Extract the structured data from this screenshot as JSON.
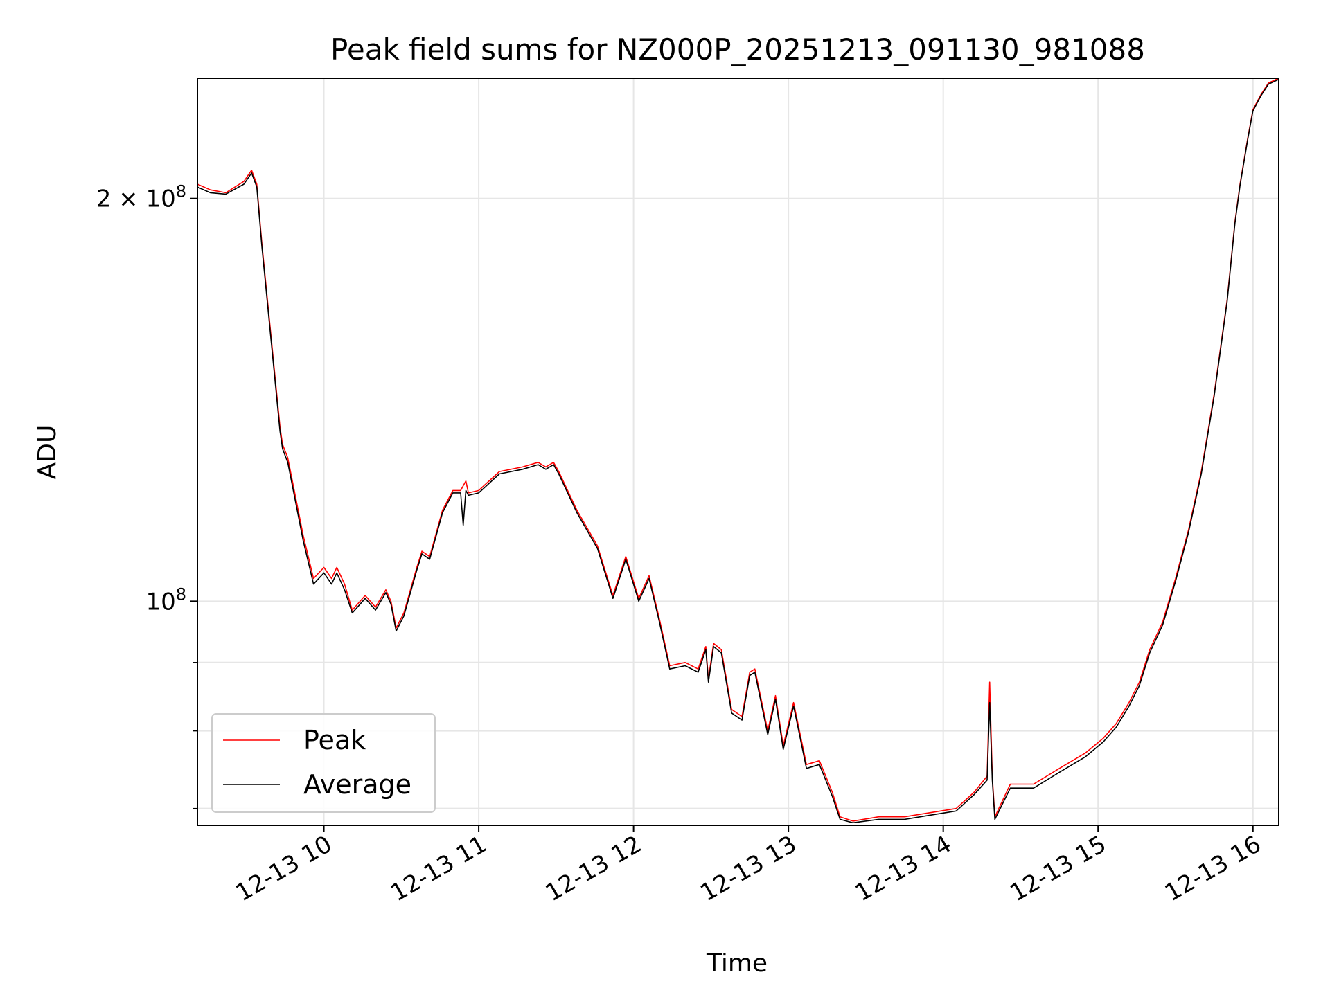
{
  "chart_data": {
    "type": "line",
    "title": "Peak field sums for NZ000P_20251213_091130_981088",
    "xlabel": "Time",
    "ylabel": "ADU",
    "y_scale": "log",
    "xlim": [
      "2025-12-13 09:11",
      "2025-12-13 16:10"
    ],
    "ylim": [
      68000000,
      246000000
    ],
    "x_ticks": [
      {
        "value": "2025-12-13 10:00",
        "label": "12-13 10"
      },
      {
        "value": "2025-12-13 11:00",
        "label": "12-13 11"
      },
      {
        "value": "2025-12-13 12:00",
        "label": "12-13 12"
      },
      {
        "value": "2025-12-13 13:00",
        "label": "12-13 13"
      },
      {
        "value": "2025-12-13 14:00",
        "label": "12-13 14"
      },
      {
        "value": "2025-12-13 15:00",
        "label": "12-13 15"
      },
      {
        "value": "2025-12-13 16:00",
        "label": "12-13 16"
      }
    ],
    "y_major_ticks": [
      {
        "value": 100000000,
        "base": "10",
        "exp": "8"
      },
      {
        "value": 200000000,
        "base": "2 × 10",
        "exp": "8"
      }
    ],
    "y_minor_ticks": [
      70000000,
      80000000,
      90000000
    ],
    "grid": true,
    "legend_position": "lower-left",
    "colors": {
      "Peak": "#ff0000",
      "Average": "#000000"
    },
    "series": [
      {
        "name": "Peak",
        "x": [
          "2025-12-13 09:11",
          "2025-12-13 09:16",
          "2025-12-13 09:22",
          "2025-12-13 09:29",
          "2025-12-13 09:32",
          "2025-12-13 09:34",
          "2025-12-13 09:36",
          "2025-12-13 09:43",
          "2025-12-13 09:44",
          "2025-12-13 09:46",
          "2025-12-13 09:52",
          "2025-12-13 09:56",
          "2025-12-13 10:00",
          "2025-12-13 10:03",
          "2025-12-13 10:05",
          "2025-12-13 10:08",
          "2025-12-13 10:11",
          "2025-12-13 10:16",
          "2025-12-13 10:20",
          "2025-12-13 10:24",
          "2025-12-13 10:26",
          "2025-12-13 10:28",
          "2025-12-13 10:31",
          "2025-12-13 10:36",
          "2025-12-13 10:38",
          "2025-12-13 10:41",
          "2025-12-13 10:46",
          "2025-12-13 10:50",
          "2025-12-13 10:53",
          "2025-12-13 10:55",
          "2025-12-13 10:56",
          "2025-12-13 11:00",
          "2025-12-13 11:08",
          "2025-12-13 11:17",
          "2025-12-13 11:23",
          "2025-12-13 11:26",
          "2025-12-13 11:29",
          "2025-12-13 11:31",
          "2025-12-13 11:38",
          "2025-12-13 11:46",
          "2025-12-13 11:52",
          "2025-12-13 11:57",
          "2025-12-13 12:02",
          "2025-12-13 12:06",
          "2025-12-13 12:10",
          "2025-12-13 12:14",
          "2025-12-13 12:20",
          "2025-12-13 12:25",
          "2025-12-13 12:28",
          "2025-12-13 12:29",
          "2025-12-13 12:31",
          "2025-12-13 12:34",
          "2025-12-13 12:38",
          "2025-12-13 12:42",
          "2025-12-13 12:45",
          "2025-12-13 12:47",
          "2025-12-13 12:52",
          "2025-12-13 12:55",
          "2025-12-13 12:58",
          "2025-12-13 13:02",
          "2025-12-13 13:07",
          "2025-12-13 13:12",
          "2025-12-13 13:17",
          "2025-12-13 13:20",
          "2025-12-13 13:25",
          "2025-12-13 13:35",
          "2025-12-13 13:45",
          "2025-12-13 13:55",
          "2025-12-13 14:05",
          "2025-12-13 14:12",
          "2025-12-13 14:17",
          "2025-12-13 14:18",
          "2025-12-13 14:19",
          "2025-12-13 14:20",
          "2025-12-13 14:26",
          "2025-12-13 14:35",
          "2025-12-13 14:45",
          "2025-12-13 14:55",
          "2025-12-13 15:02",
          "2025-12-13 15:07",
          "2025-12-13 15:12",
          "2025-12-13 15:16",
          "2025-12-13 15:20",
          "2025-12-13 15:25",
          "2025-12-13 15:30",
          "2025-12-13 15:35",
          "2025-12-13 15:40",
          "2025-12-13 15:45",
          "2025-12-13 15:50",
          "2025-12-13 15:53",
          "2025-12-13 15:55",
          "2025-12-13 15:58",
          "2025-12-13 16:00",
          "2025-12-13 16:03",
          "2025-12-13 16:06",
          "2025-12-13 16:10"
        ],
        "y": [
          205000000,
          203000000,
          202000000,
          206000000,
          210000000,
          205000000,
          185000000,
          135000000,
          131000000,
          128000000,
          112000000,
          104000000,
          106000000,
          104000000,
          106000000,
          103000000,
          98500000,
          101000000,
          99000000,
          102000000,
          100000000,
          95500000,
          98000000,
          106000000,
          109000000,
          108000000,
          117000000,
          121000000,
          121000000,
          123000000,
          120500000,
          121000000,
          125000000,
          126000000,
          127000000,
          126000000,
          127000000,
          125000000,
          117000000,
          110000000,
          101000000,
          108000000,
          100500000,
          104500000,
          97000000,
          89500000,
          90000000,
          89000000,
          92500000,
          87500000,
          93000000,
          92000000,
          83000000,
          82000000,
          88500000,
          89000000,
          80000000,
          85000000,
          78000000,
          84000000,
          75500000,
          76000000,
          72000000,
          69000000,
          68500000,
          69000000,
          69000000,
          69500000,
          70000000,
          72000000,
          74000000,
          87000000,
          74000000,
          69000000,
          73000000,
          73000000,
          75000000,
          77000000,
          79000000,
          81000000,
          84000000,
          87000000,
          92000000,
          96500000,
          104000000,
          113000000,
          125000000,
          143000000,
          168000000,
          192000000,
          205000000,
          222000000,
          233000000,
          239000000,
          244000000,
          246000000
        ]
      },
      {
        "name": "Average",
        "x": [
          "2025-12-13 09:11",
          "2025-12-13 09:16",
          "2025-12-13 09:22",
          "2025-12-13 09:29",
          "2025-12-13 09:32",
          "2025-12-13 09:34",
          "2025-12-13 09:36",
          "2025-12-13 09:43",
          "2025-12-13 09:44",
          "2025-12-13 09:46",
          "2025-12-13 09:52",
          "2025-12-13 09:56",
          "2025-12-13 10:00",
          "2025-12-13 10:03",
          "2025-12-13 10:05",
          "2025-12-13 10:08",
          "2025-12-13 10:11",
          "2025-12-13 10:16",
          "2025-12-13 10:20",
          "2025-12-13 10:24",
          "2025-12-13 10:26",
          "2025-12-13 10:28",
          "2025-12-13 10:31",
          "2025-12-13 10:36",
          "2025-12-13 10:38",
          "2025-12-13 10:41",
          "2025-12-13 10:46",
          "2025-12-13 10:50",
          "2025-12-13 10:53",
          "2025-12-13 10:54",
          "2025-12-13 10:55",
          "2025-12-13 10:56",
          "2025-12-13 11:00",
          "2025-12-13 11:08",
          "2025-12-13 11:17",
          "2025-12-13 11:23",
          "2025-12-13 11:26",
          "2025-12-13 11:29",
          "2025-12-13 11:31",
          "2025-12-13 11:38",
          "2025-12-13 11:46",
          "2025-12-13 11:52",
          "2025-12-13 11:57",
          "2025-12-13 12:02",
          "2025-12-13 12:06",
          "2025-12-13 12:10",
          "2025-12-13 12:14",
          "2025-12-13 12:20",
          "2025-12-13 12:25",
          "2025-12-13 12:28",
          "2025-12-13 12:29",
          "2025-12-13 12:31",
          "2025-12-13 12:34",
          "2025-12-13 12:38",
          "2025-12-13 12:42",
          "2025-12-13 12:45",
          "2025-12-13 12:47",
          "2025-12-13 12:52",
          "2025-12-13 12:55",
          "2025-12-13 12:58",
          "2025-12-13 13:02",
          "2025-12-13 13:07",
          "2025-12-13 13:12",
          "2025-12-13 13:17",
          "2025-12-13 13:20",
          "2025-12-13 13:25",
          "2025-12-13 13:35",
          "2025-12-13 13:45",
          "2025-12-13 13:55",
          "2025-12-13 14:05",
          "2025-12-13 14:12",
          "2025-12-13 14:17",
          "2025-12-13 14:18",
          "2025-12-13 14:19",
          "2025-12-13 14:20",
          "2025-12-13 14:26",
          "2025-12-13 14:35",
          "2025-12-13 14:45",
          "2025-12-13 14:55",
          "2025-12-13 15:02",
          "2025-12-13 15:07",
          "2025-12-13 15:12",
          "2025-12-13 15:16",
          "2025-12-13 15:20",
          "2025-12-13 15:25",
          "2025-12-13 15:30",
          "2025-12-13 15:35",
          "2025-12-13 15:40",
          "2025-12-13 15:45",
          "2025-12-13 15:50",
          "2025-12-13 15:53",
          "2025-12-13 15:55",
          "2025-12-13 15:58",
          "2025-12-13 16:00",
          "2025-12-13 16:03",
          "2025-12-13 16:06",
          "2025-12-13 16:10"
        ],
        "y": [
          204000000,
          202000000,
          201500000,
          205000000,
          209000000,
          204000000,
          184000000,
          134000000,
          130000000,
          127000000,
          111000000,
          103000000,
          105000000,
          103000000,
          105000000,
          102000000,
          98000000,
          100500000,
          98500000,
          101500000,
          99500000,
          95000000,
          97500000,
          105500000,
          108500000,
          107500000,
          116500000,
          120500000,
          120500000,
          114000000,
          121000000,
          120000000,
          120500000,
          124500000,
          125500000,
          126500000,
          125500000,
          126500000,
          124500000,
          116500000,
          109500000,
          100500000,
          107500000,
          100000000,
          104000000,
          96500000,
          89000000,
          89500000,
          88500000,
          92000000,
          87000000,
          92500000,
          91500000,
          82500000,
          81500000,
          88000000,
          88500000,
          79500000,
          84500000,
          77500000,
          83500000,
          75000000,
          75500000,
          71500000,
          68700000,
          68300000,
          68700000,
          68700000,
          69200000,
          69700000,
          71700000,
          73500000,
          84000000,
          73500000,
          68700000,
          72500000,
          72500000,
          74500000,
          76500000,
          78500000,
          80500000,
          83500000,
          86500000,
          91500000,
          96000000,
          103500000,
          112500000,
          124500000,
          142500000,
          167500000,
          191500000,
          204500000,
          221500000,
          232500000,
          238500000,
          243500000,
          245500000
        ]
      }
    ]
  }
}
